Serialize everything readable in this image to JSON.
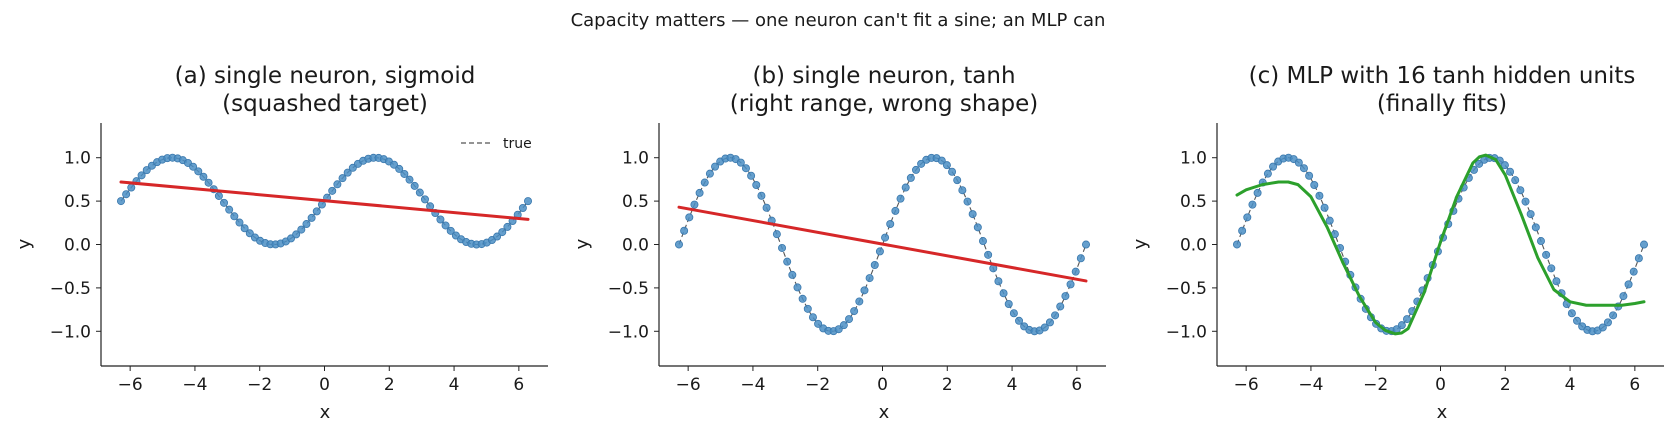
{
  "suptitle": "Capacity matters — one neuron can't fit a sine; an MLP can",
  "colors": {
    "points": "#4a8ec4",
    "point_edge": "#3a78ad",
    "dashed": "#555555",
    "red_fit": "#d62728",
    "green_fit": "#2ca02c",
    "axes": "#222222"
  },
  "chart_data": [
    {
      "type": "scatter",
      "title_lines": [
        "(a) single neuron, sigmoid",
        "(squashed target)"
      ],
      "xlabel": "x",
      "ylabel": "y",
      "xlim": [
        -6.9,
        6.9
      ],
      "ylim": [
        -1.4,
        1.4
      ],
      "xticks": [
        -6,
        -4,
        -2,
        0,
        2,
        4,
        6
      ],
      "yticks": [
        -1.0,
        -0.5,
        0.0,
        0.5,
        1.0
      ],
      "xtick_labels": [
        "−6",
        "−4",
        "−2",
        "0",
        "2",
        "4",
        "6"
      ],
      "ytick_labels": [
        "−1.0",
        "−0.5",
        "0.0",
        "0.5",
        "1.0"
      ],
      "target": {
        "function": "(sin(x)+1)/2",
        "x_range": [
          -6.283,
          6.283
        ],
        "n_points": 80
      },
      "fit": {
        "kind": "line",
        "x": [
          -6.283,
          6.283
        ],
        "y": [
          0.72,
          0.29
        ]
      },
      "legend": {
        "label": "true",
        "position": "top-right"
      }
    },
    {
      "type": "scatter",
      "title_lines": [
        "(b) single neuron, tanh",
        "(right range, wrong shape)"
      ],
      "xlabel": "x",
      "ylabel": "y",
      "xlim": [
        -6.9,
        6.9
      ],
      "ylim": [
        -1.4,
        1.4
      ],
      "xticks": [
        -6,
        -4,
        -2,
        0,
        2,
        4,
        6
      ],
      "yticks": [
        -1.0,
        -0.5,
        0.0,
        0.5,
        1.0
      ],
      "xtick_labels": [
        "−6",
        "−4",
        "−2",
        "0",
        "2",
        "4",
        "6"
      ],
      "ytick_labels": [
        "−1.0",
        "−0.5",
        "0.0",
        "0.5",
        "1.0"
      ],
      "target": {
        "function": "sin(x)",
        "x_range": [
          -6.283,
          6.283
        ],
        "n_points": 80
      },
      "fit": {
        "kind": "line",
        "x": [
          -6.283,
          6.283
        ],
        "y": [
          0.43,
          -0.42
        ]
      }
    },
    {
      "type": "scatter",
      "title_lines": [
        "(c) MLP with 16 tanh hidden units",
        "(finally fits)"
      ],
      "xlabel": "x",
      "ylabel": "y",
      "xlim": [
        -6.9,
        6.9
      ],
      "ylim": [
        -1.4,
        1.4
      ],
      "xticks": [
        -6,
        -4,
        -2,
        0,
        2,
        4,
        6
      ],
      "yticks": [
        -1.0,
        -0.5,
        0.0,
        0.5,
        1.0
      ],
      "xtick_labels": [
        "−6",
        "−4",
        "−2",
        "0",
        "2",
        "4",
        "6"
      ],
      "ytick_labels": [
        "−1.0",
        "−0.5",
        "0.0",
        "0.5",
        "1.0"
      ],
      "target": {
        "function": "sin(x)",
        "x_range": [
          -6.283,
          6.283
        ],
        "n_points": 80
      },
      "fit": {
        "kind": "curve",
        "x": [
          -6.283,
          -6.0,
          -5.5,
          -5.0,
          -4.7,
          -4.4,
          -4.0,
          -3.5,
          -3.0,
          -2.5,
          -2.0,
          -1.7,
          -1.4,
          -1.2,
          -1.0,
          -0.5,
          0.0,
          0.5,
          1.0,
          1.2,
          1.4,
          1.7,
          2.0,
          2.5,
          3.0,
          3.5,
          4.0,
          4.5,
          5.0,
          5.3,
          5.6,
          6.0,
          6.283
        ],
        "y": [
          0.57,
          0.63,
          0.69,
          0.72,
          0.72,
          0.69,
          0.55,
          0.2,
          -0.22,
          -0.6,
          -0.9,
          -0.99,
          -1.03,
          -1.02,
          -0.97,
          -0.55,
          0.03,
          0.55,
          0.94,
          1.01,
          1.03,
          0.98,
          0.8,
          0.34,
          -0.15,
          -0.52,
          -0.66,
          -0.7,
          -0.7,
          -0.7,
          -0.7,
          -0.68,
          -0.66
        ]
      }
    }
  ]
}
